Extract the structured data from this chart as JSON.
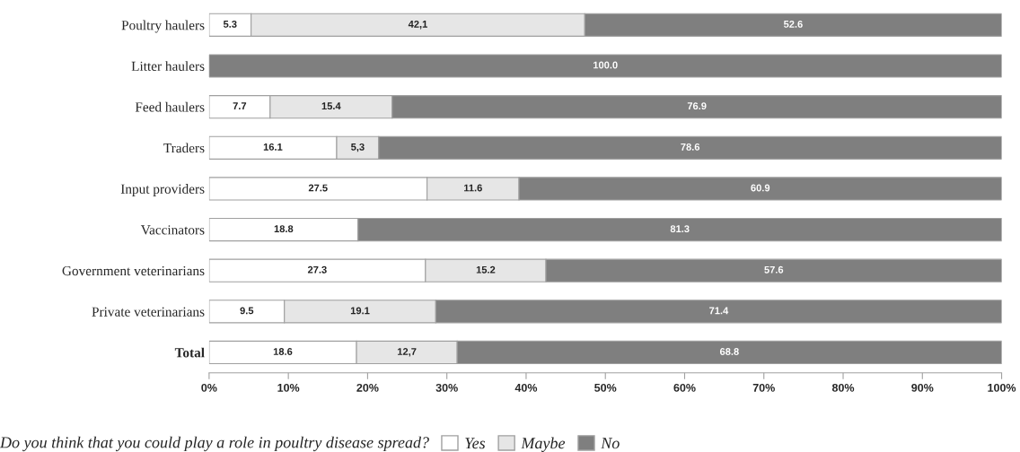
{
  "chart_data": {
    "type": "bar",
    "orientation": "horizontal",
    "stacked": true,
    "categories": [
      "Poultry haulers",
      "Litter haulers",
      "Feed haulers",
      "Traders",
      "Input providers",
      "Vaccinators",
      "Government veterinarians",
      "Private veterinarians",
      "Total"
    ],
    "series": [
      {
        "name": "Yes",
        "color": "#ffffff",
        "values": [
          5.3,
          0,
          7.7,
          16.1,
          27.5,
          18.8,
          27.3,
          9.5,
          18.6
        ],
        "value_labels": [
          "5.3",
          null,
          "7.7",
          "16.1",
          "27.5",
          "18.8",
          "27.3",
          "9.5",
          "18.6"
        ]
      },
      {
        "name": "Maybe",
        "color": "#e6e6e6",
        "values": [
          42.1,
          0,
          15.4,
          5.3,
          11.6,
          0,
          15.2,
          19.1,
          12.7
        ],
        "value_labels": [
          "42,1",
          null,
          "15.4",
          "5,3",
          "11.6",
          null,
          "15.2",
          "19.1",
          "12,7"
        ]
      },
      {
        "name": "No",
        "color": "#7f7f7f",
        "values": [
          52.6,
          100.0,
          76.9,
          78.6,
          60.9,
          81.3,
          57.6,
          71.4,
          68.8
        ],
        "value_labels": [
          "52.6",
          "100.0",
          "76.9",
          "78.6",
          "60.9",
          "81.3",
          "57.6",
          "71.4",
          "68.8"
        ]
      }
    ],
    "xlim": [
      0,
      100
    ],
    "xticks": [
      {
        "value": 0,
        "label": "0%"
      },
      {
        "value": 10,
        "label": "10%"
      },
      {
        "value": 20,
        "label": "20%"
      },
      {
        "value": 30,
        "label": "30%"
      },
      {
        "value": 40,
        "label": "40%"
      },
      {
        "value": 50,
        "label": "50%"
      },
      {
        "value": 60,
        "label": "60%"
      },
      {
        "value": 70,
        "label": "70%"
      },
      {
        "value": 80,
        "label": "80%"
      },
      {
        "value": 90,
        "label": "90%"
      },
      {
        "value": 100,
        "label": "100%"
      }
    ],
    "legend_title": "Do you think that you could play a role in poultry disease spread?",
    "legend": "bottom",
    "grid": false
  }
}
